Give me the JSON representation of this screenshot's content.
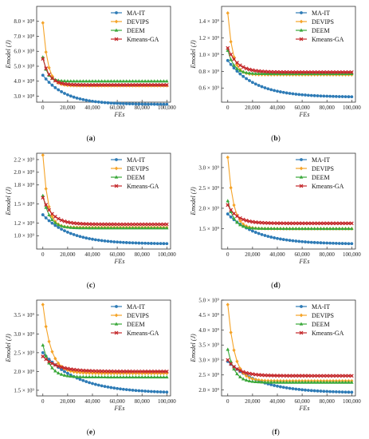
{
  "figure": {
    "legend_names": [
      "MA-IT",
      "DEVIPS",
      "DEEM",
      "Kmeans-GA"
    ],
    "colors": {
      "MA-IT": "#2e7bb6",
      "DEVIPS": "#f5a327",
      "DEEM": "#3aa83a",
      "Kmeans-GA": "#c4282b"
    }
  },
  "chart_data": [
    {
      "type": "line",
      "label": "(a)",
      "xlabel": "FEs",
      "ylabel": "Emodel (J)",
      "xlim": [
        -5000,
        103000
      ],
      "ylim": [
        260000000.0,
        900000000.0
      ],
      "xticks": [
        0,
        20000,
        40000,
        60000,
        80000,
        100000
      ],
      "xtick_labels": [
        "0",
        "20,000",
        "40,000",
        "60,000",
        "80,000",
        "100,000"
      ],
      "yticks": [
        300000000.0,
        400000000.0,
        500000000.0,
        600000000.0,
        700000000.0,
        800000000.0
      ],
      "ytick_labels": [
        "3.0 × 10⁸",
        "4.0 × 10⁸",
        "5.0 × 10⁸",
        "6.0 × 10⁸",
        "7.0 × 10⁸",
        "8.0 × 10⁸"
      ],
      "grid": false,
      "legend_position": "top-right",
      "series": [
        {
          "name": "MA-IT",
          "start": 440000000.0,
          "end": 245000000.0,
          "tau": 18000
        },
        {
          "name": "DEVIPS",
          "start": 790000000.0,
          "end": 370000000.0,
          "tau": 4000
        },
        {
          "name": "DEEM",
          "start": 560000000.0,
          "end": 400000000.0,
          "tau": 3500
        },
        {
          "name": "Kmeans-GA",
          "start": 550000000.0,
          "end": 375000000.0,
          "tau": 5500
        }
      ]
    },
    {
      "type": "line",
      "label": "(b)",
      "xlabel": "FEs",
      "ylabel": "Emodel (J)",
      "xlim": [
        -5000,
        103000
      ],
      "ylim": [
        430000000.0,
        1580000000.0
      ],
      "xticks": [
        0,
        20000,
        40000,
        60000,
        80000,
        100000
      ],
      "xtick_labels": [
        "0",
        "20,000",
        "40,000",
        "60,000",
        "80,000",
        "100,000"
      ],
      "yticks": [
        600000000.0,
        800000000.0,
        1000000000.0,
        1200000000.0,
        1400000000.0
      ],
      "ytick_labels": [
        "0.6 × 10⁹",
        "0.8 × 10⁹",
        "1.0 × 10⁹",
        "1.2 × 10⁹",
        "1.4 × 10⁹"
      ],
      "grid": false,
      "legend_position": "top-right",
      "series": [
        {
          "name": "MA-IT",
          "start": 930000000.0,
          "end": 490000000.0,
          "tau": 22000
        },
        {
          "name": "DEVIPS",
          "start": 1500000000.0,
          "end": 760000000.0,
          "tau": 4000
        },
        {
          "name": "DEEM",
          "start": 1050000000.0,
          "end": 770000000.0,
          "tau": 5000
        },
        {
          "name": "Kmeans-GA",
          "start": 1080000000.0,
          "end": 790000000.0,
          "tau": 8000
        }
      ]
    },
    {
      "type": "line",
      "label": "(c)",
      "xlabel": "FEs",
      "ylabel": "Emodel (J)",
      "xlim": [
        -5000,
        103000
      ],
      "ylim": [
        790000000.0,
        2300000000.0
      ],
      "xticks": [
        0,
        20000,
        40000,
        60000,
        80000,
        100000
      ],
      "xtick_labels": [
        "0",
        "20,000",
        "40,000",
        "60,000",
        "80,000",
        "100,000"
      ],
      "yticks": [
        1000000000.0,
        1200000000.0,
        1500000000.0,
        1800000000.0,
        2000000000.0,
        2200000000.0
      ],
      "ytick_labels": [
        "1.0 × 10⁹",
        "1.2 × 10⁹",
        "1.5 × 10⁹",
        "1.8 × 10⁹",
        "2.0 × 10⁹",
        "2.2 × 10⁹"
      ],
      "grid": false,
      "legend_position": "top-right",
      "series": [
        {
          "name": "MA-IT",
          "start": 1330000000.0,
          "end": 870000000.0,
          "tau": 22000
        },
        {
          "name": "DEVIPS",
          "start": 2270000000.0,
          "end": 1130000000.0,
          "tau": 4000
        },
        {
          "name": "DEEM",
          "start": 1630000000.0,
          "end": 1120000000.0,
          "tau": 5500
        },
        {
          "name": "Kmeans-GA",
          "start": 1600000000.0,
          "end": 1180000000.0,
          "tau": 8000
        }
      ]
    },
    {
      "type": "line",
      "label": "(d)",
      "xlabel": "FEs",
      "ylabel": "Emodel (J)",
      "xlim": [
        -5000,
        103000
      ],
      "ylim": [
        1000000000.0,
        3350000000.0
      ],
      "xticks": [
        0,
        20000,
        40000,
        60000,
        80000,
        100000
      ],
      "xtick_labels": [
        "0",
        "20,000",
        "40,000",
        "60,000",
        "80,000",
        "100,000"
      ],
      "yticks": [
        1500000000.0,
        2000000000.0,
        2500000000.0,
        3000000000.0
      ],
      "ytick_labels": [
        "1.5 × 10⁹",
        "2.0 × 10⁹",
        "2.5 × 10⁹",
        "3.0 × 10⁹"
      ],
      "grid": false,
      "legend_position": "top-right",
      "series": [
        {
          "name": "MA-IT",
          "start": 1860000000.0,
          "end": 1120000000.0,
          "tau": 24000
        },
        {
          "name": "DEVIPS",
          "start": 3250000000.0,
          "end": 1500000000.0,
          "tau": 4500
        },
        {
          "name": "DEEM",
          "start": 2180000000.0,
          "end": 1500000000.0,
          "tau": 5000
        },
        {
          "name": "Kmeans-GA",
          "start": 2080000000.0,
          "end": 1630000000.0,
          "tau": 8000
        }
      ]
    },
    {
      "type": "line",
      "label": "(e)",
      "xlabel": "FEs",
      "ylabel": "Emodel (J)",
      "xlim": [
        -5000,
        103000
      ],
      "ylim": [
        1350000000.0,
        3900000000.0
      ],
      "xticks": [
        0,
        20000,
        40000,
        60000,
        80000,
        100000
      ],
      "xtick_labels": [
        "0",
        "20,000",
        "40,000",
        "60,000",
        "80,000",
        "100,000"
      ],
      "yticks": [
        1500000000.0,
        2000000000.0,
        2500000000.0,
        3000000000.0,
        3500000000.0
      ],
      "ytick_labels": [
        "1.5 × 10⁹",
        "2.0 × 10⁹",
        "2.5 × 10⁹",
        "3.0 × 10⁹",
        "3.5 × 10⁹"
      ],
      "grid": false,
      "legend_position": "top-right",
      "series": [
        {
          "name": "MA-IT",
          "start": 2500000000.0,
          "end": 1420000000.0,
          "tau": 28000
        },
        {
          "name": "DEVIPS",
          "start": 3780000000.0,
          "end": 1950000000.0,
          "tau": 6500
        },
        {
          "name": "DEEM",
          "start": 2700000000.0,
          "end": 1850000000.0,
          "tau": 6000
        },
        {
          "name": "Kmeans-GA",
          "start": 2400000000.0,
          "end": 2000000000.0,
          "tau": 12000
        }
      ]
    },
    {
      "type": "line",
      "label": "(f)",
      "xlabel": "FEs",
      "ylabel": "Emodel (J)",
      "xlim": [
        -5000,
        103000
      ],
      "ylim": [
        1800000000.0,
        5000000000.0
      ],
      "xticks": [
        0,
        20000,
        40000,
        60000,
        80000,
        100000
      ],
      "xtick_labels": [
        "0",
        "20,000",
        "40,000",
        "60,000",
        "80,000",
        "100,000"
      ],
      "yticks": [
        2000000000.0,
        2500000000.0,
        3000000000.0,
        3500000000.0,
        4000000000.0,
        4500000000.0,
        5000000000.0
      ],
      "ytick_labels": [
        "2.0 × 10⁹",
        "2.5 × 10⁹",
        "3.0 × 10⁹",
        "3.5 × 10⁹",
        "4.0 × 10⁹",
        "4.5 × 10⁹",
        "5.0 × 10⁹"
      ],
      "grid": false,
      "legend_position": "top-right",
      "series": [
        {
          "name": "MA-IT",
          "start": 2950000000.0,
          "end": 1900000000.0,
          "tau": 26000
        },
        {
          "name": "DEVIPS",
          "start": 4850000000.0,
          "end": 2300000000.0,
          "tau": 5500
        },
        {
          "name": "DEEM",
          "start": 3350000000.0,
          "end": 2250000000.0,
          "tau": 5500
        },
        {
          "name": "Kmeans-GA",
          "start": 3000000000.0,
          "end": 2470000000.0,
          "tau": 9000
        }
      ]
    }
  ]
}
